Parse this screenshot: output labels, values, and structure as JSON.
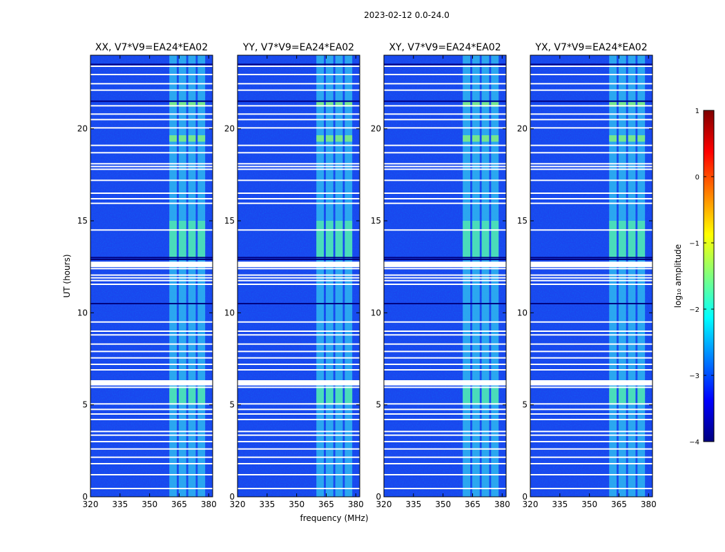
{
  "figure": {
    "suptitle": "2023-02-12 0.0-24.0",
    "xlabel": "frequency (MHz)",
    "ylabel": "UT (hours)"
  },
  "chart_data": {
    "type": "heatmap",
    "x_range": [
      320,
      382
    ],
    "y_range": [
      0,
      24
    ],
    "x_ticks": [
      320,
      335,
      350,
      365,
      380
    ],
    "y_ticks": [
      0,
      5,
      10,
      15,
      20
    ],
    "panels": [
      {
        "title": "XX, V7*V9=EA24*EA02"
      },
      {
        "title": "YY, V7*V9=EA24*EA02"
      },
      {
        "title": "XY, V7*V9=EA24*EA02"
      },
      {
        "title": "YX, V7*V9=EA24*EA02"
      }
    ],
    "rfi_band_mhz": [
      360,
      380
    ],
    "rfi_subbands_mhz": [
      [
        360,
        363.8
      ],
      [
        364.8,
        368.6
      ],
      [
        369.6,
        373.4
      ],
      [
        374.4,
        378.2
      ]
    ],
    "flagged_time_rows_hours": [
      0.45,
      1.2,
      1.8,
      2.15,
      2.6,
      3.0,
      3.35,
      3.55,
      4.2,
      4.5,
      4.75,
      5.05,
      5.95,
      6.1,
      6.3,
      6.9,
      7.2,
      7.55,
      7.9,
      8.3,
      8.8,
      9.0,
      9.5,
      11.55,
      11.75,
      11.9,
      12.05,
      12.4,
      12.55,
      12.7,
      14.5,
      15.95,
      16.2,
      16.5,
      17.2,
      17.8,
      17.95,
      18.1,
      18.7,
      19.1,
      20.05,
      20.5,
      20.8,
      21.25,
      22.1,
      22.45,
      22.95,
      23.4
    ],
    "high_amplitude_periods_hours": [
      [
        5.0,
        6.0
      ],
      [
        13.0,
        15.0
      ],
      [
        19.3,
        19.65
      ],
      [
        21.2,
        21.45
      ]
    ],
    "colorbar": {
      "label": "log₁₀ amplitude",
      "range": [
        -4,
        1
      ],
      "ticks": [
        "1",
        "0",
        "−1",
        "−2",
        "−3",
        "−4"
      ],
      "colormap": [
        "#00007f",
        "#0000ff",
        "#007fff",
        "#00ffff",
        "#7fff7f",
        "#ffff00",
        "#ff7f00",
        "#ff0000",
        "#7f0000"
      ]
    }
  }
}
